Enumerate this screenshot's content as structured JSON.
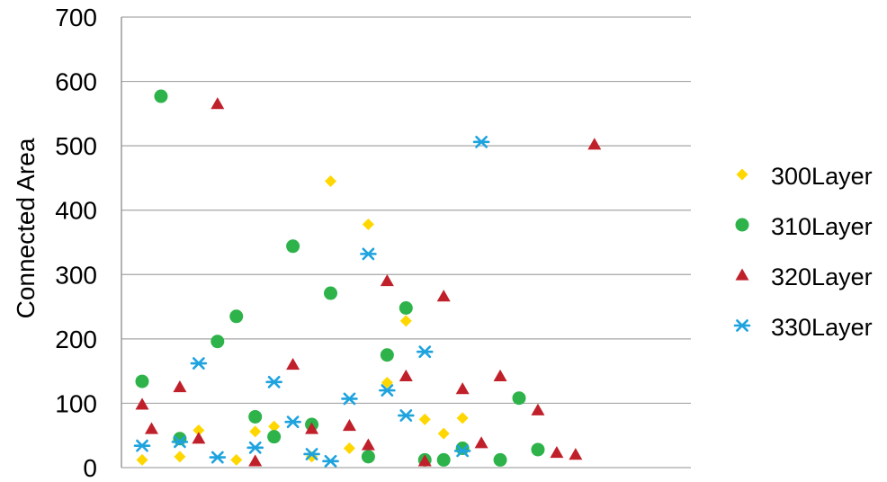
{
  "chart_data": {
    "type": "scatter",
    "ylabel": "Connected Area",
    "xlabel": "",
    "ylim": [
      0,
      700
    ],
    "y_ticks": [
      "0",
      "100",
      "200",
      "300",
      "400",
      "500",
      "600",
      "700"
    ],
    "grid": "horizontal",
    "legend_position": "right",
    "series": [
      {
        "name": "300Layer",
        "marker": "diamond",
        "color": "#FFD700",
        "x": [
          1,
          3,
          4,
          6,
          7,
          8,
          10,
          11,
          12,
          13,
          14,
          15,
          16,
          17,
          18
        ],
        "y": [
          12,
          17,
          58,
          12,
          56,
          64,
          17,
          445,
          30,
          378,
          132,
          228,
          75,
          53,
          77
        ]
      },
      {
        "name": "310Layer",
        "marker": "circle",
        "color": "#2DB34A",
        "x": [
          1,
          2,
          3,
          5,
          6,
          7,
          8,
          9,
          10,
          11,
          13,
          14,
          15,
          16,
          17,
          18,
          20,
          21,
          22
        ],
        "y": [
          134,
          577,
          45,
          196,
          235,
          79,
          48,
          344,
          67,
          271,
          17,
          175,
          248,
          12,
          12,
          30,
          12,
          108,
          28
        ]
      },
      {
        "name": "320Layer",
        "marker": "triangle",
        "color": "#C0202A",
        "x": [
          1,
          1.5,
          3,
          4,
          5,
          7,
          9,
          10,
          12,
          13,
          14,
          15,
          16,
          17,
          18,
          19,
          20,
          22,
          23,
          24,
          25
        ],
        "y": [
          98,
          60,
          125,
          45,
          565,
          10,
          160,
          60,
          65,
          35,
          290,
          142,
          10,
          266,
          122,
          38,
          142,
          89,
          23,
          20,
          502
        ]
      },
      {
        "name": "330Layer",
        "marker": "asterisk",
        "color": "#1FA3DE",
        "x": [
          1,
          3,
          4,
          5,
          7,
          8,
          9,
          10,
          11,
          12,
          13,
          14,
          15,
          16,
          18,
          19
        ],
        "y": [
          34,
          40,
          162,
          16,
          31,
          133,
          71,
          21,
          10,
          107,
          332,
          120,
          81,
          180,
          26,
          506
        ]
      }
    ]
  }
}
